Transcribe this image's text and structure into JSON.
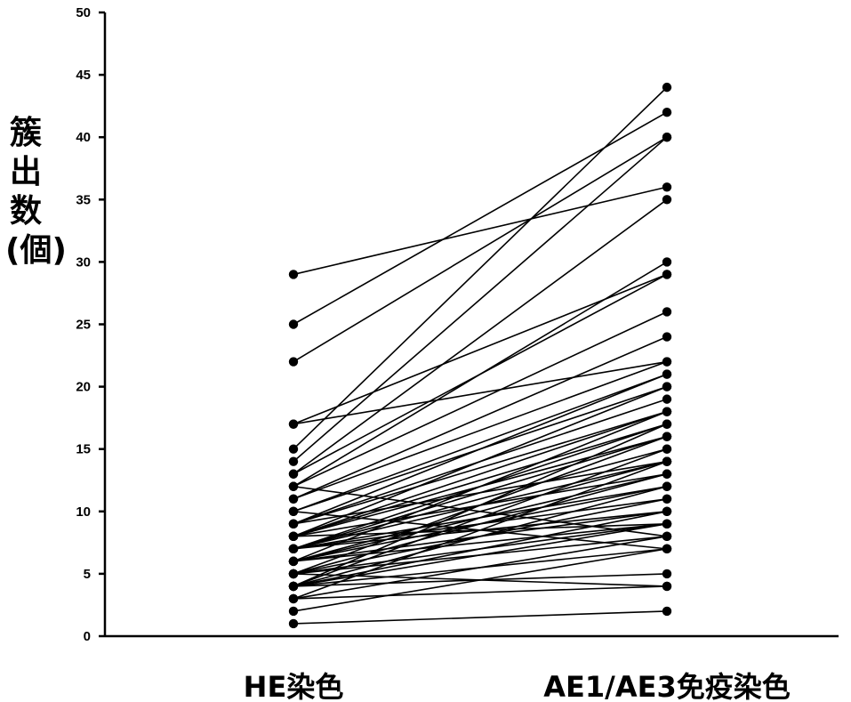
{
  "chart_data": {
    "type": "line",
    "title": "",
    "xlabel": "",
    "ylabel": "簇出数(個)",
    "categories": [
      "HE染色",
      "AE1/AE3免疫染色"
    ],
    "ylim": [
      0,
      50
    ],
    "yticks": [
      0,
      5,
      10,
      15,
      20,
      25,
      30,
      35,
      40,
      45,
      50
    ],
    "grid": false,
    "legend": "none",
    "marker": "circle",
    "line_color": "#000000",
    "pairs": [
      [
        29,
        36
      ],
      [
        25,
        42
      ],
      [
        22,
        40
      ],
      [
        17,
        22
      ],
      [
        17,
        29
      ],
      [
        15,
        44
      ],
      [
        14,
        40
      ],
      [
        13,
        35
      ],
      [
        13,
        29
      ],
      [
        12,
        30
      ],
      [
        12,
        8
      ],
      [
        12,
        26
      ],
      [
        11,
        24
      ],
      [
        11,
        22
      ],
      [
        10,
        21
      ],
      [
        10,
        7
      ],
      [
        10,
        20
      ],
      [
        9,
        21
      ],
      [
        9,
        19
      ],
      [
        9,
        18
      ],
      [
        9,
        14
      ],
      [
        8,
        17
      ],
      [
        8,
        16
      ],
      [
        8,
        18
      ],
      [
        8,
        20
      ],
      [
        8,
        13
      ],
      [
        8,
        9
      ],
      [
        7,
        15
      ],
      [
        7,
        14
      ],
      [
        7,
        16
      ],
      [
        7,
        12
      ],
      [
        7,
        11
      ],
      [
        7,
        17
      ],
      [
        7,
        10
      ],
      [
        6,
        13
      ],
      [
        6,
        12
      ],
      [
        6,
        14
      ],
      [
        6,
        9
      ],
      [
        6,
        18
      ],
      [
        6,
        10
      ],
      [
        5,
        11
      ],
      [
        5,
        13
      ],
      [
        5,
        9
      ],
      [
        5,
        16
      ],
      [
        5,
        8
      ],
      [
        5,
        4
      ],
      [
        4,
        12
      ],
      [
        4,
        10
      ],
      [
        4,
        9
      ],
      [
        4,
        7
      ],
      [
        4,
        5
      ],
      [
        4,
        15
      ],
      [
        4,
        17
      ],
      [
        3,
        14
      ],
      [
        3,
        8
      ],
      [
        3,
        4
      ],
      [
        2,
        7
      ],
      [
        1,
        2
      ]
    ]
  }
}
